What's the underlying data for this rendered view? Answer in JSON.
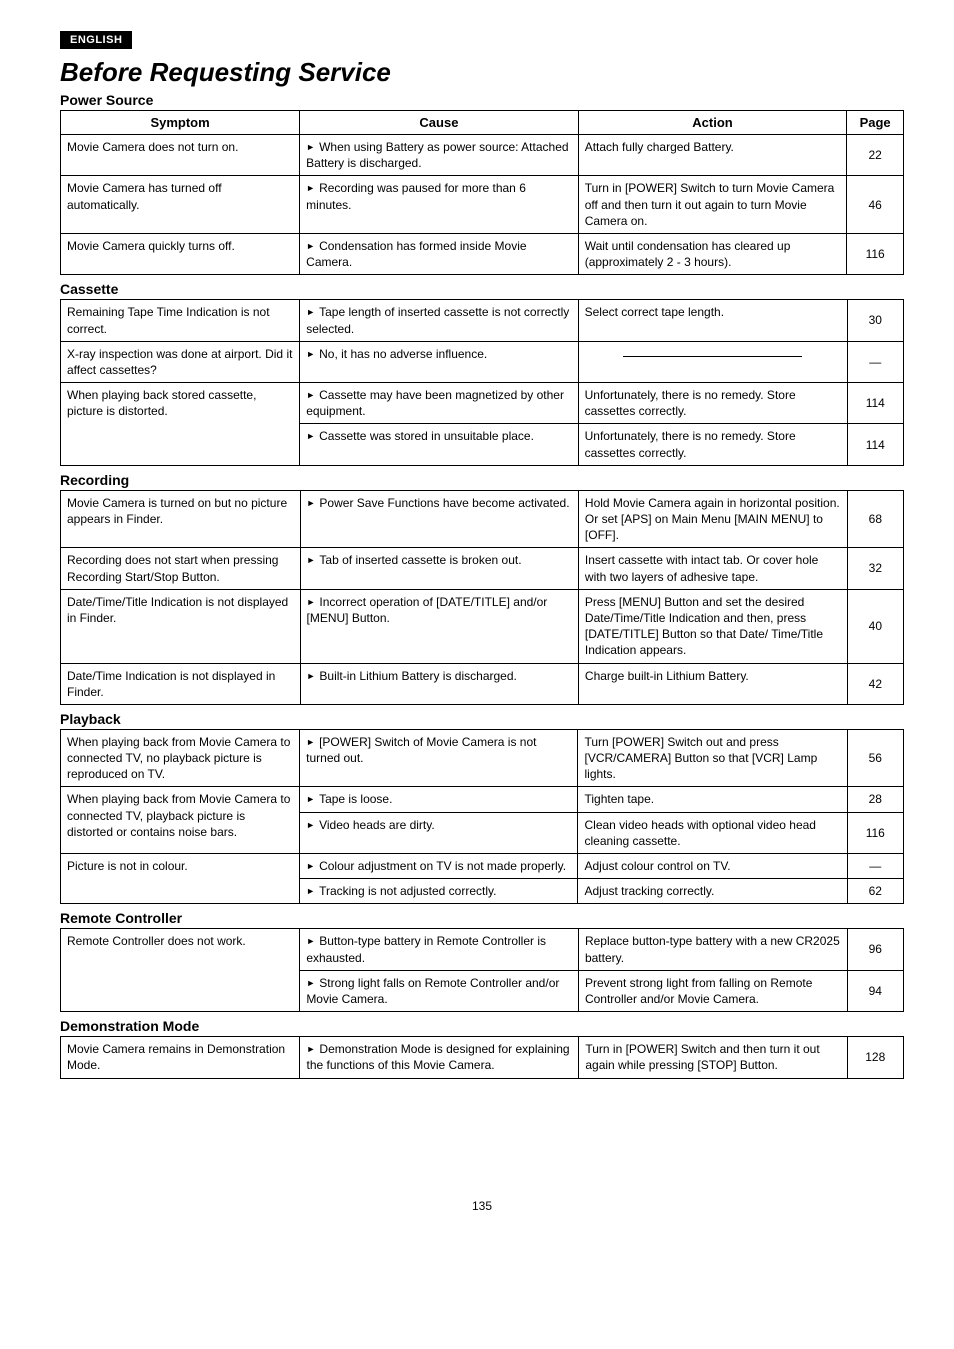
{
  "lang_badge": "ENGLISH",
  "page_title": "Before Requesting Service",
  "headers": {
    "symptom": "Symptom",
    "cause": "Cause",
    "action": "Action",
    "page": "Page"
  },
  "page_number": "135",
  "sections": [
    {
      "title": "Power Source",
      "show_header": true,
      "rows": [
        {
          "symptom": "Movie Camera does not turn on.",
          "cause": "When using Battery as power source: Attached Battery is discharged.",
          "action": "Attach fully charged Battery.",
          "page": "22"
        },
        {
          "symptom": "Movie Camera has turned off automatically.",
          "cause": "Recording was paused for more than 6 minutes.",
          "action": "Turn in [POWER] Switch to turn Movie Camera off and then turn it out again to turn Movie Camera on.",
          "page": "46"
        },
        {
          "symptom": "Movie Camera quickly turns off.",
          "cause": "Condensation has formed inside Movie Camera.",
          "action": "Wait until condensation has cleared up (approximately 2 - 3 hours).",
          "page": "116"
        }
      ]
    },
    {
      "title": "Cassette",
      "rows": [
        {
          "symptom": "Remaining Tape Time Indication is not correct.",
          "cause": "Tape length of inserted cassette is not correctly selected.",
          "action": "Select correct tape length.",
          "page": "30"
        },
        {
          "symptom": "X-ray inspection was done at airport. Did it affect cassettes?",
          "cause": "No, it has no adverse influence.",
          "action_blank": true,
          "page": "—"
        },
        {
          "symptom": "When playing back stored cassette, picture is distorted.",
          "symptom_rowspan": 2,
          "cause": "Cassette may have been magnetized by other equipment.",
          "action": "Unfortunately, there is no remedy. Store cassettes correctly.",
          "page": "114"
        },
        {
          "cause": "Cassette was stored in unsuitable place.",
          "action": "Unfortunately, there is no remedy. Store cassettes correctly.",
          "page": "114"
        }
      ]
    },
    {
      "title": "Recording",
      "rows": [
        {
          "symptom": "Movie Camera is turned on but no picture appears in Finder.",
          "cause": "Power Save Functions have become activated.",
          "action": "Hold Movie Camera again in horizontal position. Or set [APS] on Main Menu [MAIN MENU] to [OFF].",
          "page": "68"
        },
        {
          "symptom": "Recording does not start when pressing Recording Start/Stop Button.",
          "cause": "Tab of inserted cassette is broken out.",
          "action": "Insert cassette with intact tab. Or cover hole with two layers of adhesive tape.",
          "page": "32"
        },
        {
          "symptom": "Date/Time/Title Indication is not displayed in Finder.",
          "cause": "Incorrect operation of [DATE/TITLE] and/or [MENU] Button.",
          "action": "Press [MENU] Button and set the desired Date/Time/Title Indication and then, press [DATE/TITLE] Button so that Date/ Time/Title Indication appears.",
          "page": "40"
        },
        {
          "symptom": "Date/Time Indication is not displayed in Finder.",
          "cause": "Built-in Lithium Battery is discharged.",
          "action": "Charge built-in Lithium Battery.",
          "page": "42"
        }
      ]
    },
    {
      "title": "Playback",
      "rows": [
        {
          "symptom": "When playing back from Movie Camera to connected TV, no playback picture is reproduced on TV.",
          "cause": "[POWER] Switch of Movie Camera is not turned out.",
          "action": "Turn [POWER] Switch out and press [VCR/CAMERA] Button so that [VCR] Lamp lights.",
          "page": "56"
        },
        {
          "symptom": "When playing back from Movie Camera to connected TV, playback picture is distorted or contains noise bars.",
          "symptom_rowspan": 2,
          "cause": "Tape is loose.",
          "action": "Tighten tape.",
          "page": "28"
        },
        {
          "cause": "Video heads are dirty.",
          "action": "Clean video heads with optional video head cleaning cassette.",
          "page": "116"
        },
        {
          "symptom": "Picture is not in colour.",
          "symptom_rowspan": 2,
          "cause": "Colour adjustment on TV is not made properly.",
          "action": "Adjust colour control on TV.",
          "page": "—"
        },
        {
          "cause": "Tracking is not adjusted correctly.",
          "action": "Adjust tracking correctly.",
          "page": "62"
        }
      ]
    },
    {
      "title": "Remote Controller",
      "rows": [
        {
          "symptom": "Remote Controller does not work.",
          "symptom_rowspan": 2,
          "cause": "Button-type battery in Remote Controller is exhausted.",
          "action": "Replace button-type battery with a new CR2025 battery.",
          "page": "96"
        },
        {
          "cause": "Strong light falls on Remote Controller and/or Movie Camera.",
          "action": "Prevent strong light from falling on Remote Controller and/or Movie Camera.",
          "page": "94"
        }
      ]
    },
    {
      "title": "Demonstration Mode",
      "rows": [
        {
          "symptom": "Movie Camera remains in Demonstration Mode.",
          "cause": "Demonstration Mode is designed for explaining the functions of this Movie Camera.",
          "action": "Turn in [POWER] Switch and then turn it out again while pressing [STOP] Button.",
          "page": "128"
        }
      ]
    }
  ]
}
